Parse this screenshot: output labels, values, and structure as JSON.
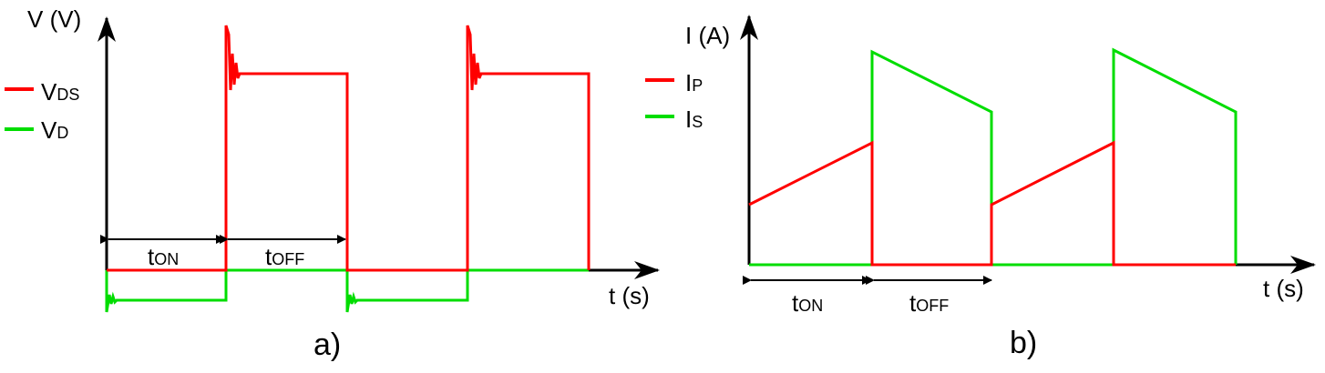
{
  "colors": {
    "primary": "#ff0000",
    "secondary": "#00dd00",
    "axis": "#000000"
  },
  "panel_a": {
    "y_axis_label": "V (V)",
    "x_axis_label": "t (s)",
    "caption": "a)",
    "legend": [
      {
        "main": "V",
        "sub": "DS",
        "color": "#ff0000"
      },
      {
        "main": "V",
        "sub": "D",
        "color": "#00dd00"
      }
    ],
    "intervals": [
      {
        "main": "t",
        "sub": "ON"
      },
      {
        "main": "t",
        "sub": "OFF"
      }
    ]
  },
  "panel_b": {
    "y_axis_label": "I (A)",
    "x_axis_label": "t (s)",
    "caption": "b)",
    "legend": [
      {
        "main": "I",
        "sub": "P",
        "color": "#ff0000"
      },
      {
        "main": "I",
        "sub": "S",
        "color": "#00dd00"
      }
    ],
    "intervals": [
      {
        "main": "t",
        "sub": "ON"
      },
      {
        "main": "t",
        "sub": "OFF"
      }
    ]
  }
}
